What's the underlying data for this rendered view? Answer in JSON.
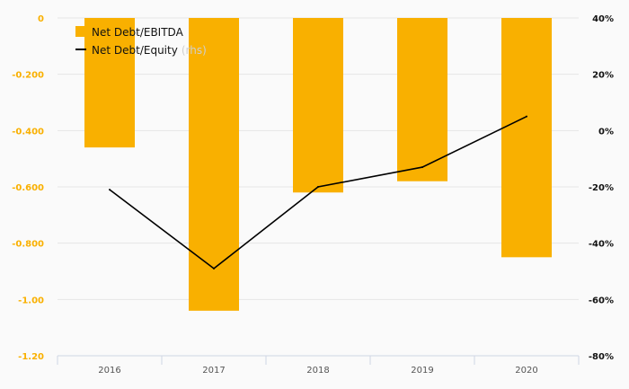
{
  "chart_data": {
    "type": "bar",
    "categories": [
      "2016",
      "2017",
      "2018",
      "2019",
      "2020"
    ],
    "series": [
      {
        "name": "Net Debt/EBITDA",
        "type": "bar",
        "axis": "left",
        "color": "#f9b000",
        "values": [
          -0.46,
          -1.04,
          -0.62,
          -0.58,
          -0.85
        ]
      },
      {
        "name": "Net Debt/Equity",
        "type": "line",
        "axis": "right",
        "color": "#000000",
        "values": [
          -21,
          -49,
          -20,
          -13,
          5
        ]
      }
    ],
    "y_left": {
      "min": -1.2,
      "max": 0,
      "ticks": [
        0,
        -0.2,
        -0.4,
        -0.6,
        -0.8,
        -1.0,
        -1.2
      ],
      "tick_labels": [
        "0",
        "-0.200",
        "-0.400",
        "-0.600",
        "-0.800",
        "-1.00",
        "-1.20"
      ],
      "color": "#f9b000"
    },
    "y_right": {
      "min": -80,
      "max": 40,
      "ticks": [
        40,
        20,
        0,
        -20,
        -40,
        -60,
        -80
      ],
      "tick_labels": [
        "40%",
        "20%",
        "0%",
        "-20%",
        "-40%",
        "-60%",
        "-80%"
      ]
    },
    "legend": {
      "position": "top-left",
      "items": [
        {
          "label": "Net Debt/EBITDA",
          "suffix": ""
        },
        {
          "label": "Net Debt/Equity",
          "suffix": "(rhs)"
        }
      ]
    },
    "grid": true
  }
}
